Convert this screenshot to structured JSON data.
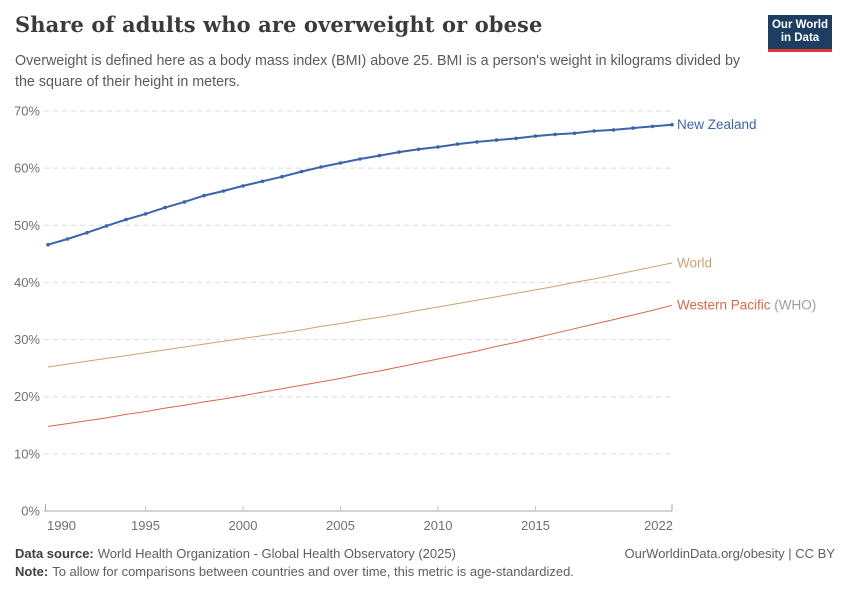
{
  "header": {
    "title": "Share of adults who are overweight or obese",
    "subtitle": "Overweight is defined here as a body mass index (BMI) above 25. BMI is a person's weight in kilograms divided by the square of their height in meters.",
    "logo_line1": "Our World",
    "logo_line2": "in Data"
  },
  "chart_data": {
    "type": "line",
    "title": "Share of adults who are overweight or obese",
    "xlabel": "",
    "ylabel": "",
    "ylim": [
      0,
      70
    ],
    "grid": "horizontal-dashed",
    "legend_position": "right-edge-labels",
    "x": [
      1990,
      1991,
      1992,
      1993,
      1994,
      1995,
      1996,
      1997,
      1998,
      1999,
      2000,
      2001,
      2002,
      2003,
      2004,
      2005,
      2006,
      2007,
      2008,
      2009,
      2010,
      2011,
      2012,
      2013,
      2014,
      2015,
      2016,
      2017,
      2018,
      2019,
      2020,
      2021,
      2022
    ],
    "series": [
      {
        "name": "New Zealand",
        "color": "#3d64a8",
        "markers": true,
        "label_suffix": "",
        "values": [
          46.6,
          47.6,
          48.7,
          49.9,
          51.0,
          52.0,
          53.1,
          54.1,
          55.2,
          56.0,
          56.9,
          57.7,
          58.5,
          59.4,
          60.2,
          60.9,
          61.6,
          62.2,
          62.8,
          63.3,
          63.7,
          64.2,
          64.6,
          64.9,
          65.2,
          65.6,
          65.9,
          66.1,
          66.5,
          66.7,
          67.0,
          67.3,
          67.6
        ]
      },
      {
        "name": "World",
        "color": "#c9a470",
        "markers": false,
        "label_suffix": "",
        "values": [
          25.2,
          25.7,
          26.2,
          26.7,
          27.2,
          27.7,
          28.2,
          28.7,
          29.2,
          29.7,
          30.2,
          30.7,
          31.2,
          31.7,
          32.3,
          32.8,
          33.4,
          33.9,
          34.5,
          35.1,
          35.7,
          36.3,
          36.9,
          37.5,
          38.1,
          38.7,
          39.3,
          40.0,
          40.6,
          41.3,
          42.0,
          42.7,
          43.4
        ]
      },
      {
        "name": "Western Pacific",
        "color": "#d3694c",
        "markers": false,
        "label_suffix": " (WHO)",
        "values": [
          14.8,
          15.3,
          15.8,
          16.3,
          16.9,
          17.4,
          18.0,
          18.5,
          19.1,
          19.6,
          20.2,
          20.8,
          21.4,
          22.0,
          22.6,
          23.2,
          23.9,
          24.5,
          25.2,
          25.9,
          26.6,
          27.3,
          28.0,
          28.8,
          29.5,
          30.3,
          31.1,
          31.9,
          32.7,
          33.5,
          34.3,
          35.1,
          36.0
        ]
      }
    ],
    "ytick_values": [
      0,
      10,
      20,
      30,
      40,
      50,
      60,
      70
    ],
    "ytick_labels": [
      "0%",
      "10%",
      "20%",
      "30%",
      "40%",
      "50%",
      "60%",
      "70%"
    ],
    "xticks": [
      1990,
      1995,
      2000,
      2005,
      2010,
      2015,
      2022
    ],
    "suffix_color": "#9c9c9c",
    "grid_color": "#dcdcdc",
    "axis_color": "#a8a8a8",
    "tick_text_color": "#707070"
  },
  "footer": {
    "source_label": "Data source:",
    "source_text": "World Health Organization - Global Health Observatory (2025)",
    "note_label": "Note:",
    "note_text": "To allow for comparisons between countries and over time, this metric is age-standardized.",
    "attribution": "OurWorldinData.org/obesity | CC BY"
  }
}
